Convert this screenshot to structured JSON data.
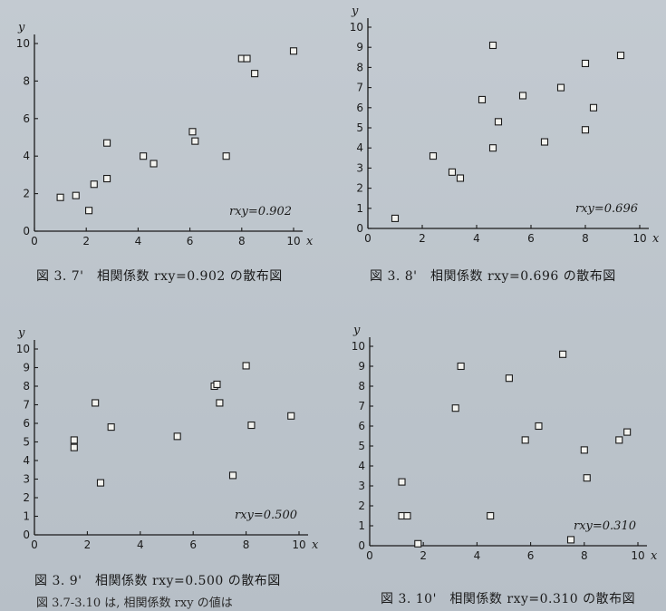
{
  "captions": [
    "図 3. 7'　相関係数 rxy=0.902 の散布図",
    "図 3. 8'　相関係数 rxy=0.696 の散布図",
    "図 3. 9'　相関係数 rxy=0.500 の散布図",
    "図 3. 10'　相関係数 rxy=0.310 の散布図"
  ],
  "footnote": "図 3.7-3.10 は, 相関係数 rxy の値は",
  "chart_data": [
    {
      "type": "scatter",
      "xlabel": "x",
      "ylabel": "y",
      "xlim": [
        0,
        10
      ],
      "ylim": [
        0,
        10
      ],
      "xticks": [
        0,
        2,
        4,
        6,
        8,
        10
      ],
      "yticks": [
        0,
        2,
        4,
        6,
        8,
        10
      ],
      "annotation": "rxy=0.902",
      "points": [
        [
          1,
          1.8
        ],
        [
          1.6,
          1.9
        ],
        [
          2.1,
          1.1
        ],
        [
          2.3,
          2.5
        ],
        [
          2.8,
          2.8
        ],
        [
          2.8,
          4.7
        ],
        [
          4.2,
          4.0
        ],
        [
          4.6,
          3.6
        ],
        [
          6.1,
          5.3
        ],
        [
          6.2,
          4.8
        ],
        [
          7.4,
          4.0
        ],
        [
          8.0,
          9.2
        ],
        [
          8.2,
          9.2
        ],
        [
          8.5,
          8.4
        ],
        [
          10.0,
          9.6
        ]
      ]
    },
    {
      "type": "scatter",
      "xlabel": "x",
      "ylabel": "y",
      "xlim": [
        0,
        10
      ],
      "ylim": [
        0,
        10
      ],
      "xticks": [
        0,
        2,
        4,
        6,
        8,
        10
      ],
      "yticks": [
        0,
        1,
        2,
        3,
        4,
        5,
        6,
        7,
        8,
        9,
        10
      ],
      "annotation": "rxy=0.696",
      "points": [
        [
          1,
          0.5
        ],
        [
          2.4,
          3.6
        ],
        [
          3.1,
          2.8
        ],
        [
          3.4,
          2.5
        ],
        [
          4.2,
          6.4
        ],
        [
          4.6,
          9.1
        ],
        [
          4.6,
          4.0
        ],
        [
          4.8,
          5.3
        ],
        [
          5.7,
          6.6
        ],
        [
          6.5,
          4.3
        ],
        [
          7.1,
          7.0
        ],
        [
          8.0,
          8.2
        ],
        [
          8.0,
          4.9
        ],
        [
          8.3,
          6.0
        ],
        [
          9.3,
          8.6
        ]
      ]
    },
    {
      "type": "scatter",
      "xlabel": "x",
      "ylabel": "y",
      "xlim": [
        0,
        10
      ],
      "ylim": [
        0,
        10
      ],
      "xticks": [
        0,
        2,
        4,
        6,
        8,
        10
      ],
      "yticks": [
        0,
        1,
        2,
        3,
        4,
        5,
        6,
        7,
        8,
        9,
        10
      ],
      "annotation": "rxy=0.500",
      "points": [
        [
          1.5,
          5.1
        ],
        [
          1.5,
          4.7
        ],
        [
          2.3,
          7.1
        ],
        [
          2.5,
          2.8
        ],
        [
          2.9,
          5.8
        ],
        [
          5.4,
          5.3
        ],
        [
          6.8,
          8.0
        ],
        [
          6.9,
          8.1
        ],
        [
          7.0,
          7.1
        ],
        [
          7.5,
          3.2
        ],
        [
          8.0,
          9.1
        ],
        [
          8.2,
          5.9
        ],
        [
          9.7,
          6.4
        ]
      ]
    },
    {
      "type": "scatter",
      "xlabel": "x",
      "ylabel": "y",
      "xlim": [
        0,
        10
      ],
      "ylim": [
        0,
        10
      ],
      "xticks": [
        0,
        2,
        4,
        6,
        8,
        10
      ],
      "yticks": [
        0,
        1,
        2,
        3,
        4,
        5,
        6,
        7,
        8,
        9,
        10
      ],
      "annotation": "rxy=0.310",
      "points": [
        [
          1.2,
          3.2
        ],
        [
          1.2,
          1.5
        ],
        [
          1.4,
          1.5
        ],
        [
          1.8,
          0.1
        ],
        [
          3.2,
          6.9
        ],
        [
          3.4,
          9.0
        ],
        [
          4.5,
          1.5
        ],
        [
          5.2,
          8.4
        ],
        [
          5.8,
          5.3
        ],
        [
          6.3,
          6.0
        ],
        [
          7.2,
          9.6
        ],
        [
          7.5,
          0.3
        ],
        [
          8.0,
          4.8
        ],
        [
          8.1,
          3.4
        ],
        [
          9.3,
          5.3
        ],
        [
          9.6,
          5.7
        ]
      ]
    }
  ]
}
